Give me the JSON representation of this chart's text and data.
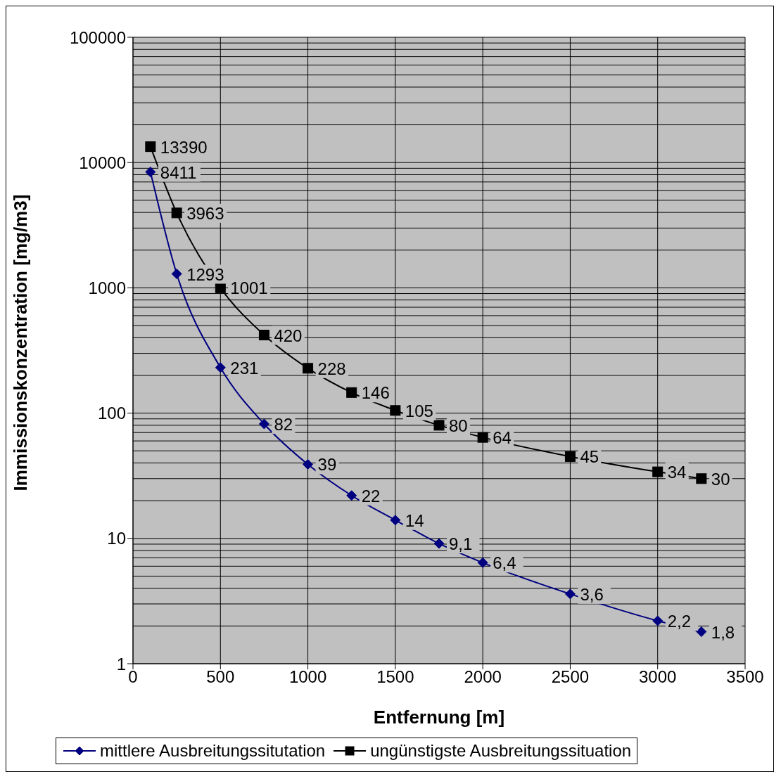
{
  "chart_data": {
    "type": "line",
    "xlabel": "Entfernung [m]",
    "ylabel": "Immissionskonzentration  [mg/m3]",
    "x": [
      100,
      250,
      500,
      750,
      1000,
      1250,
      1500,
      1750,
      2000,
      2500,
      3000,
      3250
    ],
    "series": [
      {
        "name": "mittlere Ausbreitungssitutation",
        "color": "#000080",
        "marker": "diamond",
        "values": [
          8411,
          1293,
          231,
          82,
          39,
          22,
          14,
          9.1,
          6.4,
          3.6,
          2.2,
          1.8
        ],
        "value_labels": [
          "8411",
          "1293",
          "231",
          "82",
          "39",
          "22",
          "14",
          "9,1",
          "6,4",
          "3,6",
          "2,2",
          "1,8"
        ]
      },
      {
        "name": "ungünstigste Ausbreitungssituation",
        "color": "#000000",
        "marker": "square",
        "values": [
          13390,
          3963,
          1001,
          420,
          228,
          146,
          105,
          80,
          64,
          45,
          34,
          30
        ],
        "value_labels": [
          "13390",
          "3963",
          "1001",
          "420",
          "228",
          "146",
          "105",
          "80",
          "64",
          "45",
          "34",
          "30"
        ]
      }
    ],
    "xlim": [
      0,
      3500
    ],
    "xticks": [
      0,
      500,
      1000,
      1500,
      2000,
      2500,
      3000,
      3500
    ],
    "ylim": [
      1,
      100000
    ],
    "yticks": [
      1,
      10,
      100,
      1000,
      10000,
      100000
    ],
    "log": "y",
    "grid": true,
    "legend": "bottom",
    "line_style": "solid"
  }
}
